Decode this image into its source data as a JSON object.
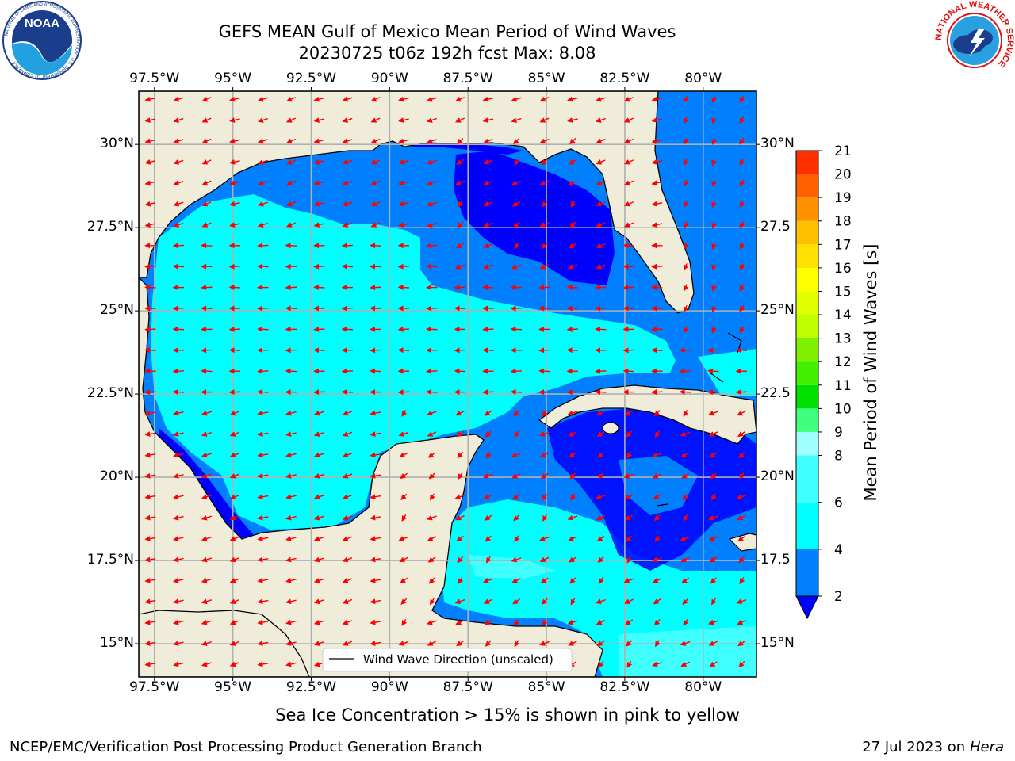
{
  "title": {
    "line1": "GEFS MEAN Gulf of Mexico Mean Period of Wind Waves",
    "line2": "20230725 t06z 192h fcst   Max: 8.08"
  },
  "logos": {
    "left": {
      "label": "NOAA",
      "ring_text": "NATIONAL OCEANIC AND ATMOSPHERIC ADMINISTRATION · U.S. DEPARTMENT OF COMMERCE",
      "icon": "noaa-logo-icon"
    },
    "right": {
      "ring_text": "NATIONAL WEATHER SERVICE",
      "icon": "nws-logo-icon"
    }
  },
  "map": {
    "lon_ticks_top": [
      "97.5°W",
      "95°W",
      "92.5°W",
      "90°W",
      "87.5°W",
      "85°W",
      "82.5°W",
      "80°W"
    ],
    "lon_ticks_bottom": [
      "97.5°W",
      "95°W",
      "92.5°W",
      "90°W",
      "87.5°W",
      "85°W",
      "82.5°W",
      "80°W"
    ],
    "lat_ticks_left": [
      "30°N",
      "27.5°N",
      "25°N",
      "22.5°N",
      "20°N",
      "17.5°N",
      "15°N"
    ],
    "lat_ticks_right": [
      "30°N",
      "27.5",
      "25°N",
      "22.5",
      "20°N",
      "17.5",
      "15°N"
    ],
    "lon_values": [
      -97.5,
      -95,
      -92.5,
      -90,
      -87.5,
      -85,
      -82.5,
      -80
    ],
    "lat_values": [
      30,
      27.5,
      25,
      22.5,
      20,
      17.5,
      15
    ],
    "extent": {
      "lon": [
        -98,
        -78.3
      ],
      "lat": [
        14,
        31.6
      ]
    },
    "legend_label": "Wind Wave Direction (unscaled)",
    "colors": {
      "land": "#efedda",
      "arrow": "#ff0000",
      "coast": "#000000",
      "grid": "#b0b0b0"
    }
  },
  "colorbar": {
    "label": "Mean Period of Wind Waves [s]",
    "ticks": [
      "21",
      "20",
      "19",
      "18",
      "17",
      "16",
      "15",
      "14",
      "13",
      "12",
      "11",
      "10",
      "9",
      "8",
      "6",
      "4",
      "2"
    ],
    "bins": [
      {
        "min": 0,
        "color": "#0000ff"
      },
      {
        "min": 2,
        "color": "#0080ff"
      },
      {
        "min": 4,
        "color": "#00ffff"
      },
      {
        "min": 6,
        "color": "#40ffff"
      },
      {
        "min": 8,
        "color": "#a0ffff"
      },
      {
        "min": 9,
        "color": "#40ff80"
      },
      {
        "min": 10,
        "color": "#00e000"
      },
      {
        "min": 11,
        "color": "#40f000"
      },
      {
        "min": 12,
        "color": "#80f000"
      },
      {
        "min": 13,
        "color": "#c0ff00"
      },
      {
        "min": 14,
        "color": "#e0ff00"
      },
      {
        "min": 15,
        "color": "#ffff00"
      },
      {
        "min": 16,
        "color": "#ffe000"
      },
      {
        "min": 17,
        "color": "#ffc000"
      },
      {
        "min": 18,
        "color": "#ff9000"
      },
      {
        "min": 19,
        "color": "#ff6000"
      },
      {
        "min": 20,
        "color": "#ff3000"
      },
      {
        "min": 21,
        "color": "#ff0000"
      }
    ]
  },
  "subtitle": "Sea Ice Concentration > 15% is shown in pink to yellow",
  "footer": {
    "left": "NCEP/EMC/Verification Post Processing Product Generation Branch",
    "right_date": "27 Jul 2023 on ",
    "right_host": "Hera"
  }
}
